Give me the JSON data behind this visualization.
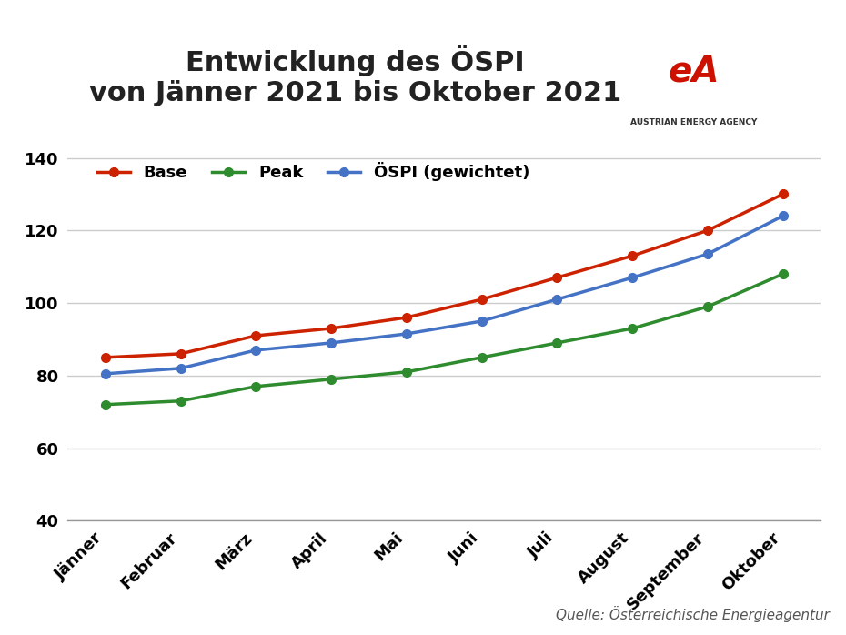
{
  "title": "Entwicklung des ÖSPI\nvon Jänner 2021 bis Oktober 2021",
  "months": [
    "Jänner",
    "Februar",
    "März",
    "April",
    "Mai",
    "Juni",
    "Juli",
    "August",
    "September",
    "Oktober"
  ],
  "base": [
    85,
    86,
    91,
    93,
    96,
    101,
    107,
    113,
    120,
    130
  ],
  "peak": [
    72,
    73,
    77,
    79,
    81,
    85,
    89,
    93,
    99,
    108
  ],
  "oespi": [
    80.5,
    82,
    87,
    89,
    91.5,
    95,
    101,
    107,
    113.5,
    124
  ],
  "base_color": "#cc2200",
  "peak_color": "#2e8b2e",
  "oespi_color": "#4472c4",
  "ylim": [
    40,
    145
  ],
  "yticks": [
    40,
    60,
    80,
    100,
    120,
    140
  ],
  "source_text": "Quelle: Österreichische Energieagentur",
  "legend_labels": [
    "Base",
    "Peak",
    "ÖSPI (gewichtet)"
  ],
  "background_color": "#ffffff",
  "grid_color": "#cccccc",
  "title_fontsize": 22,
  "tick_fontsize": 13,
  "legend_fontsize": 13,
  "source_fontsize": 11,
  "linewidth": 2.5,
  "markersize": 7
}
